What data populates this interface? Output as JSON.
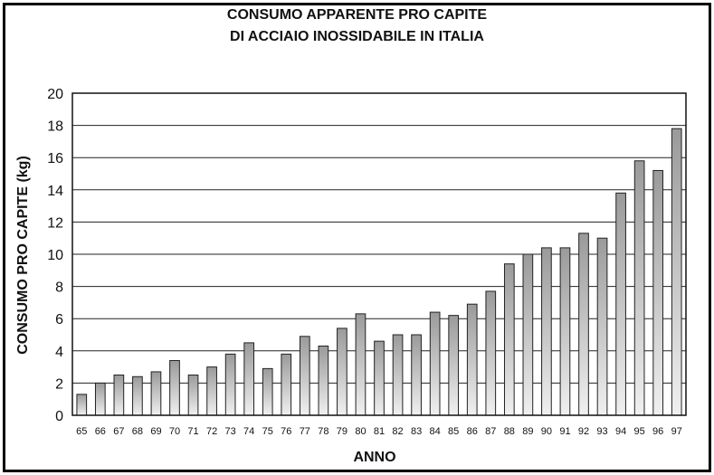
{
  "chart_data": {
    "type": "bar",
    "title_line1": "CONSUMO APPARENTE PRO CAPITE",
    "title_line2": "DI ACCIAIO INOSSIDABILE IN ITALIA",
    "xlabel": "ANNO",
    "ylabel": "CONSUMO PRO CAPITE (kg)",
    "ylim": [
      0,
      20
    ],
    "yticks": [
      0,
      2,
      4,
      6,
      8,
      10,
      12,
      14,
      16,
      18,
      20
    ],
    "grid": true,
    "categories": [
      "65",
      "66",
      "67",
      "68",
      "69",
      "70",
      "71",
      "72",
      "73",
      "74",
      "75",
      "76",
      "77",
      "78",
      "79",
      "80",
      "81",
      "82",
      "83",
      "84",
      "85",
      "86",
      "87",
      "88",
      "89",
      "90",
      "91",
      "92",
      "93",
      "94",
      "95",
      "96",
      "97"
    ],
    "values": [
      1.3,
      2.0,
      2.5,
      2.4,
      2.7,
      3.4,
      2.5,
      3.0,
      3.8,
      4.5,
      2.9,
      3.8,
      4.9,
      4.3,
      5.4,
      6.3,
      4.6,
      5.0,
      5.0,
      6.4,
      6.2,
      6.9,
      7.7,
      9.4,
      10.0,
      10.4,
      10.4,
      11.3,
      11.0,
      13.8,
      15.8,
      15.2,
      17.8
    ]
  },
  "colors": {
    "bar_light": "#e6e6e6",
    "bar_dark": "#6e6e6e",
    "grid": "#222222"
  }
}
